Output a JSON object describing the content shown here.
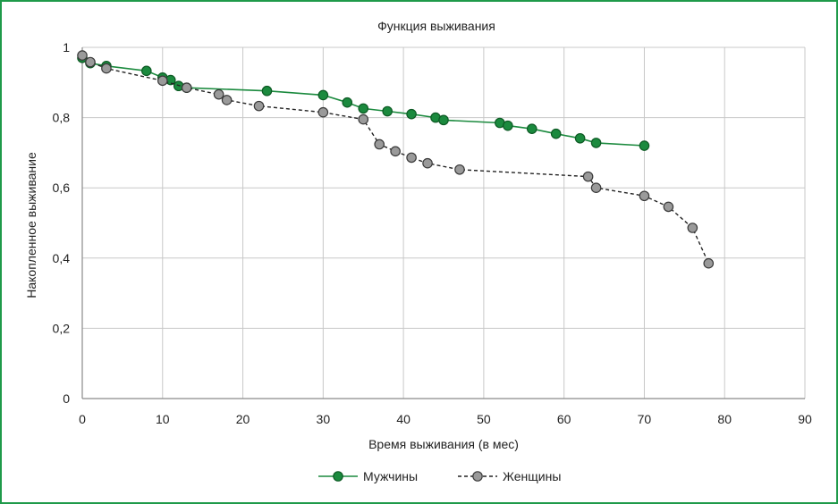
{
  "chart_data": {
    "type": "line",
    "title": "Функция выживания",
    "xlabel": "Время выживания (в мес)",
    "ylabel": "Накопленное выживание",
    "xlim": [
      0,
      90
    ],
    "ylim": [
      0,
      1
    ],
    "x_ticks": [
      0,
      10,
      20,
      30,
      40,
      50,
      60,
      70,
      80,
      90
    ],
    "y_ticks": [
      0,
      0.2,
      0.4,
      0.6,
      0.8,
      1
    ],
    "x_tick_labels": [
      "0",
      "10",
      "20",
      "30",
      "40",
      "50",
      "60",
      "70",
      "80",
      "90"
    ],
    "y_tick_labels": [
      "0",
      "0,2",
      "0,4",
      "0,6",
      "0,8",
      "1"
    ],
    "grid": "vertical",
    "legend_position": "bottom",
    "series": [
      {
        "name": "Мужчины",
        "color": "#1b8a3e",
        "marker_fill": "#1b8a3e",
        "line_style": "solid",
        "points": [
          [
            0,
            0.97
          ],
          [
            1,
            0.955
          ],
          [
            3,
            0.947
          ],
          [
            8,
            0.933
          ],
          [
            10,
            0.914
          ],
          [
            11,
            0.907
          ],
          [
            12,
            0.89
          ],
          [
            13,
            0.885
          ],
          [
            23,
            0.876
          ],
          [
            30,
            0.864
          ],
          [
            33,
            0.843
          ],
          [
            35,
            0.826
          ],
          [
            38,
            0.818
          ],
          [
            41,
            0.81
          ],
          [
            44,
            0.8
          ],
          [
            45,
            0.793
          ],
          [
            52,
            0.785
          ],
          [
            53,
            0.777
          ],
          [
            56,
            0.768
          ],
          [
            59,
            0.754
          ],
          [
            62,
            0.741
          ],
          [
            64,
            0.728
          ],
          [
            70,
            0.72
          ]
        ]
      },
      {
        "name": "Женщины",
        "color": "#222222",
        "marker_fill": "#9a9a9a",
        "line_style": "dashed",
        "points": [
          [
            0,
            0.977
          ],
          [
            1,
            0.958
          ],
          [
            3,
            0.94
          ],
          [
            10,
            0.905
          ],
          [
            13,
            0.885
          ],
          [
            17,
            0.866
          ],
          [
            18,
            0.85
          ],
          [
            22,
            0.833
          ],
          [
            30,
            0.815
          ],
          [
            35,
            0.795
          ],
          [
            37,
            0.724
          ],
          [
            39,
            0.704
          ],
          [
            41,
            0.686
          ],
          [
            43,
            0.67
          ],
          [
            47,
            0.652
          ],
          [
            63,
            0.632
          ],
          [
            64,
            0.6
          ],
          [
            70,
            0.577
          ],
          [
            73,
            0.546
          ],
          [
            76,
            0.486
          ],
          [
            78,
            0.385
          ]
        ]
      }
    ]
  }
}
